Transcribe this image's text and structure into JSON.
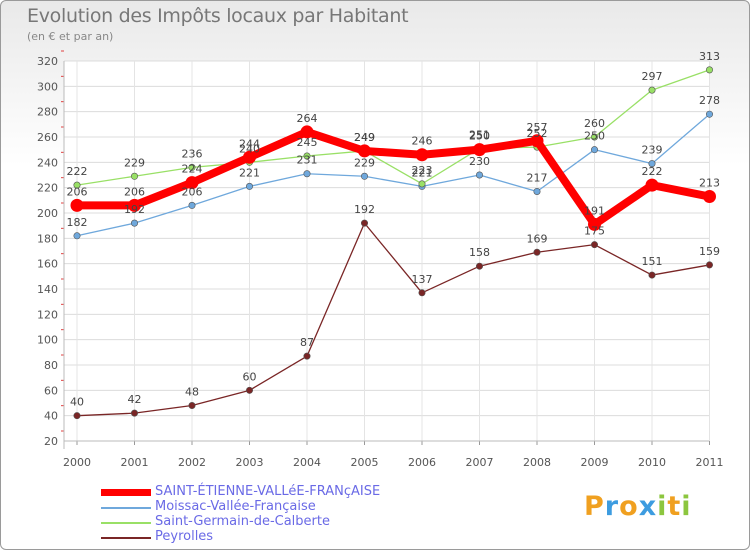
{
  "header": {
    "title": "Evolution des Impôts locaux par Habitant",
    "subtitle": "(en € et par an)"
  },
  "brand": {
    "letters": [
      "P",
      "r",
      "o",
      "x",
      "i",
      "t",
      "i"
    ],
    "colors": [
      "#f0a020",
      "#3d9ce0",
      "#f0a020",
      "#3d9ce0",
      "#8cc63f",
      "#f0a020",
      "#8cc63f"
    ]
  },
  "chart_data": {
    "type": "line",
    "title": "Evolution des Impôts locaux par Habitant",
    "subtitle": "(en € et par an)",
    "xlabel": "",
    "ylabel": "",
    "ylim": [
      20,
      320
    ],
    "ytick_step": 20,
    "grid": true,
    "legend": "bottom-left",
    "categories": [
      "2000",
      "2001",
      "2002",
      "2003",
      "2004",
      "2005",
      "2006",
      "2007",
      "2008",
      "2009",
      "2010",
      "2011"
    ],
    "series": [
      {
        "name": "SAINT-ÉTIENNE-VALLéE-FRANçAISE",
        "color": "#ff0000",
        "bold": true,
        "values": [
          206,
          206,
          224,
          244,
          264,
          249,
          246,
          250,
          257,
          191,
          222,
          213
        ]
      },
      {
        "name": "Moissac-Vallée-Française",
        "color": "#6fa8dc",
        "bold": false,
        "values": [
          182,
          192,
          206,
          221,
          231,
          229,
          221,
          230,
          217,
          250,
          239,
          278
        ]
      },
      {
        "name": "Saint-Germain-de-Calberte",
        "color": "#99e066",
        "bold": false,
        "values": [
          222,
          229,
          236,
          240,
          245,
          249,
          223,
          251,
          252,
          260,
          297,
          313
        ]
      },
      {
        "name": "Peyrolles",
        "color": "#7a2626",
        "bold": false,
        "values": [
          40,
          42,
          48,
          60,
          87,
          192,
          137,
          158,
          169,
          175,
          151,
          159
        ]
      }
    ]
  }
}
